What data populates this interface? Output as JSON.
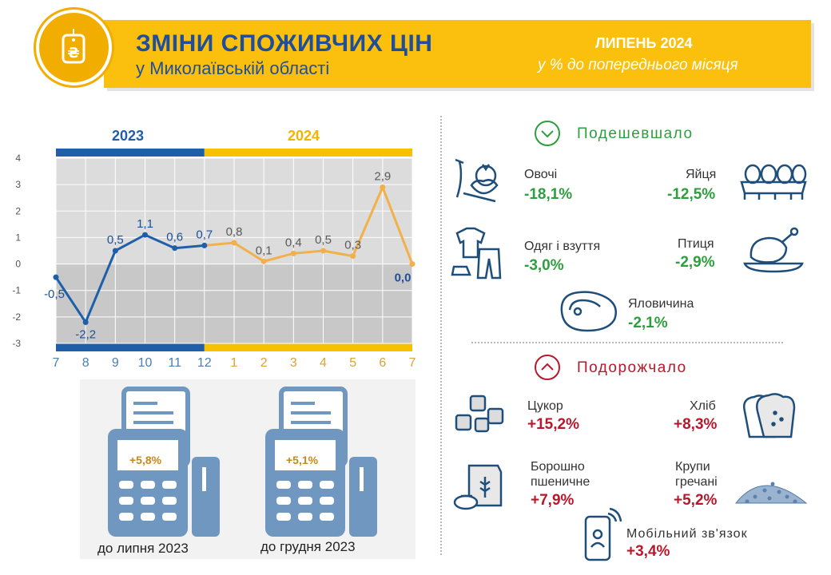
{
  "header": {
    "title": "ЗМІНИ СПОЖИВЧИХ ЦІН",
    "subtitle": "у Миколаївській області",
    "month": "ЛИПЕНЬ 2024",
    "month_sub": "у % до попереднього місяця"
  },
  "colors": {
    "accent": "#fbbf0e",
    "blue": "#1f5fa8",
    "green": "#2e9e3e",
    "red": "#b8182c",
    "orange": "#f2b04b"
  },
  "chart_data": {
    "type": "line",
    "year_labels": [
      "2023",
      "2024"
    ],
    "categories": [
      "7",
      "8",
      "9",
      "10",
      "11",
      "12",
      "1",
      "2",
      "3",
      "4",
      "5",
      "6",
      "7"
    ],
    "values": [
      -0.5,
      -2.2,
      0.5,
      1.1,
      0.6,
      0.7,
      0.8,
      0.1,
      0.4,
      0.5,
      0.3,
      2.9,
      0.0
    ],
    "value_labels": [
      "-0,5",
      "-2,2",
      "0,5",
      "1,1",
      "0,6",
      "0,7",
      "0,8",
      "0,1",
      "0,4",
      "0,5",
      "0,3",
      "2,9",
      "0,0"
    ],
    "y_ticks": [
      "4",
      "3",
      "2",
      "1",
      "0",
      "-1",
      "-2",
      "-3"
    ],
    "ylim": [
      -3,
      4
    ],
    "grid": true,
    "series_colors": [
      "#1f5fa8",
      "#f2b04b"
    ]
  },
  "receipts": [
    {
      "value": "+5,8%",
      "caption": "до липня 2023"
    },
    {
      "value": "+5,1%",
      "caption": "до грудня 2023"
    }
  ],
  "cheaper": {
    "title": "Подешевшало",
    "icon": "chevron-down-icon",
    "items": [
      {
        "label": "Овочі",
        "value": "-18,1%",
        "icon": "vegetables-icon"
      },
      {
        "label": "Яйця",
        "value": "-12,5%",
        "icon": "eggs-icon"
      },
      {
        "label": "Одяг і взуття",
        "value": "-3,0%",
        "icon": "clothes-icon"
      },
      {
        "label": "Птиця",
        "value": "-2,9%",
        "icon": "poultry-icon"
      },
      {
        "label": "Яловичина",
        "value": "-2,1%",
        "icon": "beef-icon"
      }
    ]
  },
  "pricier": {
    "title": "Подорожчало",
    "icon": "chevron-up-icon",
    "items": [
      {
        "label": "Цукор",
        "value": "+15,2%",
        "icon": "sugar-icon"
      },
      {
        "label": "Хліб",
        "value": "+8,3%",
        "icon": "bread-icon"
      },
      {
        "label": "Борошно\nпшеничне",
        "label1": "Борошно",
        "label2": "пшеничне",
        "value": "+7,9%",
        "icon": "flour-icon"
      },
      {
        "label": "Крупи\nгречані",
        "label1": "Крупи",
        "label2": "гречані",
        "value": "+5,2%",
        "icon": "buckwheat-icon"
      },
      {
        "label": "Мобільний зв'язок",
        "value": "+3,4%",
        "icon": "mobile-icon"
      }
    ]
  }
}
